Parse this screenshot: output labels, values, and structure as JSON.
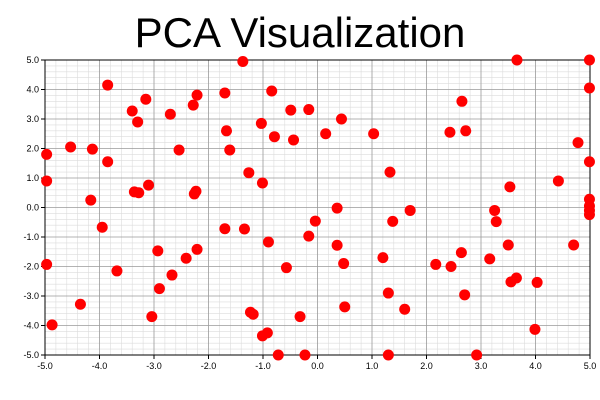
{
  "chart_data": {
    "type": "scatter",
    "title": "PCA Visualization",
    "xlabel": "",
    "ylabel": "",
    "xlim": [
      -5.0,
      5.0
    ],
    "ylim": [
      -5.0,
      5.0
    ],
    "grid": true,
    "minor_grid": true,
    "legend": false,
    "x_ticks": [
      "-5.0",
      "-4.0",
      "-3.0",
      "-2.0",
      "-1.0",
      "0.0",
      "1.0",
      "2.0",
      "3.0",
      "4.0",
      "5.0"
    ],
    "y_ticks": [
      "5.0",
      "4.0",
      "3.0",
      "2.0",
      "1.0",
      "0.0",
      "-1.0",
      "-2.0",
      "-3.0",
      "-4.0",
      "-5.0"
    ],
    "marker_color": "#ff0000",
    "grid_major_color": "#9a9a9a",
    "grid_minor_color": "#dcdcdc",
    "points": [
      {
        "x": -4.97,
        "y": 1.8
      },
      {
        "x": -4.97,
        "y": 0.9
      },
      {
        "x": -4.97,
        "y": -1.93
      },
      {
        "x": -4.87,
        "y": -3.98
      },
      {
        "x": -4.53,
        "y": 2.05
      },
      {
        "x": -4.35,
        "y": -3.28
      },
      {
        "x": -4.16,
        "y": 0.25
      },
      {
        "x": -4.13,
        "y": 1.98
      },
      {
        "x": -3.95,
        "y": -0.67
      },
      {
        "x": -3.85,
        "y": 1.55
      },
      {
        "x": -3.85,
        "y": 4.15
      },
      {
        "x": -3.68,
        "y": -2.15
      },
      {
        "x": -3.4,
        "y": 3.27
      },
      {
        "x": -3.36,
        "y": 0.53
      },
      {
        "x": -3.3,
        "y": 2.9
      },
      {
        "x": -3.28,
        "y": 0.5
      },
      {
        "x": -3.15,
        "y": 3.67
      },
      {
        "x": -3.1,
        "y": 0.76
      },
      {
        "x": -3.04,
        "y": -3.7
      },
      {
        "x": -2.93,
        "y": -1.47
      },
      {
        "x": -2.9,
        "y": -2.75
      },
      {
        "x": -2.7,
        "y": 3.16
      },
      {
        "x": -2.67,
        "y": -2.29
      },
      {
        "x": -2.54,
        "y": 1.95
      },
      {
        "x": -2.41,
        "y": -1.72
      },
      {
        "x": -2.28,
        "y": 3.47
      },
      {
        "x": -2.26,
        "y": 0.46
      },
      {
        "x": -2.23,
        "y": 0.55
      },
      {
        "x": -2.21,
        "y": 3.81
      },
      {
        "x": -2.21,
        "y": -1.42
      },
      {
        "x": -1.7,
        "y": 3.88
      },
      {
        "x": -1.7,
        "y": -0.72
      },
      {
        "x": -1.67,
        "y": 2.6
      },
      {
        "x": -1.61,
        "y": 1.95
      },
      {
        "x": -1.37,
        "y": 4.95
      },
      {
        "x": -1.34,
        "y": -0.73
      },
      {
        "x": -1.26,
        "y": 1.18
      },
      {
        "x": -1.23,
        "y": -3.55
      },
      {
        "x": -1.18,
        "y": -3.62
      },
      {
        "x": -1.03,
        "y": 2.85
      },
      {
        "x": -1.01,
        "y": 0.83
      },
      {
        "x": -1.01,
        "y": -4.35
      },
      {
        "x": -0.92,
        "y": -4.25
      },
      {
        "x": -0.9,
        "y": -1.17
      },
      {
        "x": -0.84,
        "y": 3.95
      },
      {
        "x": -0.79,
        "y": 2.4
      },
      {
        "x": -0.72,
        "y": -5.0
      },
      {
        "x": -0.57,
        "y": -2.04
      },
      {
        "x": -0.49,
        "y": 3.3
      },
      {
        "x": -0.44,
        "y": 2.29
      },
      {
        "x": -0.32,
        "y": -3.7
      },
      {
        "x": -0.23,
        "y": -5.0
      },
      {
        "x": -0.16,
        "y": 3.32
      },
      {
        "x": -0.16,
        "y": -0.97
      },
      {
        "x": -0.04,
        "y": -0.46
      },
      {
        "x": 0.15,
        "y": 2.5
      },
      {
        "x": 0.36,
        "y": -0.02
      },
      {
        "x": 0.36,
        "y": -1.28
      },
      {
        "x": 0.44,
        "y": 3.0
      },
      {
        "x": 0.48,
        "y": -1.9
      },
      {
        "x": 0.5,
        "y": -3.37
      },
      {
        "x": 1.03,
        "y": 2.5
      },
      {
        "x": 1.2,
        "y": -1.7
      },
      {
        "x": 1.3,
        "y": -2.9
      },
      {
        "x": 1.3,
        "y": -5.0
      },
      {
        "x": 1.33,
        "y": 1.2
      },
      {
        "x": 1.38,
        "y": -0.47
      },
      {
        "x": 1.6,
        "y": -3.45
      },
      {
        "x": 1.7,
        "y": -0.1
      },
      {
        "x": 2.17,
        "y": -1.93
      },
      {
        "x": 2.43,
        "y": 2.55
      },
      {
        "x": 2.45,
        "y": -2.0
      },
      {
        "x": 2.64,
        "y": -1.53
      },
      {
        "x": 2.65,
        "y": 3.6
      },
      {
        "x": 2.7,
        "y": -2.96
      },
      {
        "x": 2.72,
        "y": 2.6
      },
      {
        "x": 2.92,
        "y": -5.0
      },
      {
        "x": 3.16,
        "y": -1.74
      },
      {
        "x": 3.25,
        "y": -0.1
      },
      {
        "x": 3.28,
        "y": -0.48
      },
      {
        "x": 3.5,
        "y": -1.27
      },
      {
        "x": 3.53,
        "y": 0.7
      },
      {
        "x": 3.55,
        "y": -2.52
      },
      {
        "x": 3.65,
        "y": -2.39
      },
      {
        "x": 3.66,
        "y": 5.0
      },
      {
        "x": 3.99,
        "y": -4.13
      },
      {
        "x": 4.03,
        "y": -2.54
      },
      {
        "x": 4.42,
        "y": 0.9
      },
      {
        "x": 4.7,
        "y": -1.27
      },
      {
        "x": 4.78,
        "y": 2.2
      },
      {
        "x": 4.99,
        "y": 5.0
      },
      {
        "x": 4.99,
        "y": 4.05
      },
      {
        "x": 4.99,
        "y": 1.55
      },
      {
        "x": 4.99,
        "y": 0.28
      },
      {
        "x": 4.99,
        "y": 0.05
      },
      {
        "x": 4.99,
        "y": -0.1
      },
      {
        "x": 4.99,
        "y": -0.24
      }
    ]
  }
}
